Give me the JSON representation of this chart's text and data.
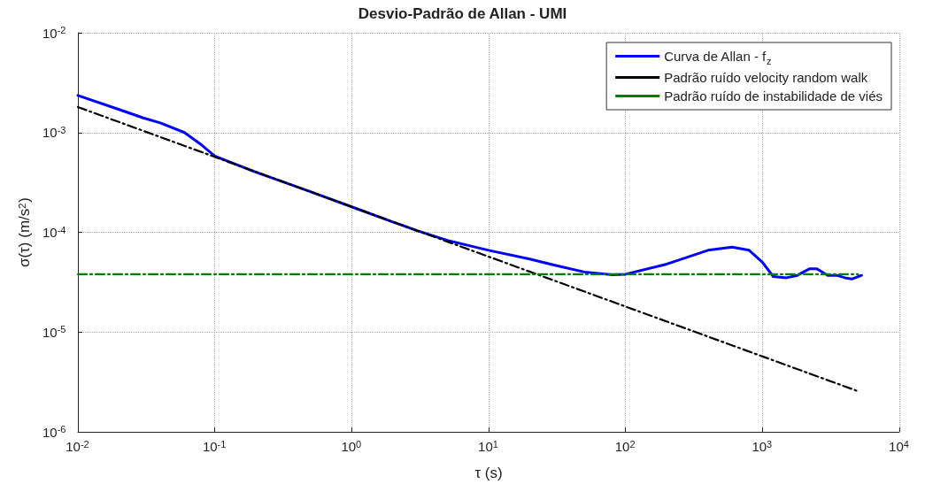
{
  "chart_data": {
    "type": "line",
    "title": "Desvio-Padrão de Allan - UMI",
    "xlabel": "τ (s)",
    "ylabel": "σ(τ) (m/s$^{2}$)",
    "log": "xy",
    "grid": true,
    "legend": "top right",
    "marker": "none",
    "xlim": [
      0.01,
      10000
    ],
    "ylim": [
      1e-06,
      0.01
    ],
    "xticks": [
      {
        "value": 0.01,
        "label": "10$^{-2}$"
      },
      {
        "value": 0.1,
        "label": "10$^{-1}$"
      },
      {
        "value": 1,
        "label": "10$^{0}$"
      },
      {
        "value": 10,
        "label": "10$^{1}$"
      },
      {
        "value": 100,
        "label": "10$^{2}$"
      },
      {
        "value": 1000,
        "label": "10$^{3}$"
      },
      {
        "value": 10000,
        "label": "10$^{4}$"
      }
    ],
    "yticks": [
      {
        "value": 1e-06,
        "label": "10$^{-6}$"
      },
      {
        "value": 1e-05,
        "label": "10$^{-5}$"
      },
      {
        "value": 0.0001,
        "label": "10$^{-4}$"
      },
      {
        "value": 0.001,
        "label": "10$^{-3}$"
      },
      {
        "value": 0.01,
        "label": "10$^{-2}$"
      }
    ],
    "series": [
      {
        "name": "Curva de Allan - f$_{z}$",
        "color": "#0000ff",
        "line_style": "solid",
        "x": [
          0.01,
          0.02,
          0.03,
          0.04,
          0.06,
          0.08,
          0.1,
          0.2,
          0.5,
          1,
          2,
          3,
          5,
          10,
          20,
          30,
          50,
          80,
          100,
          200,
          400,
          600,
          800,
          1000,
          1200,
          1500,
          1800,
          2200,
          2500,
          3000,
          3500,
          4000,
          4500,
          5000,
          5300
        ],
        "values": [
          0.00235,
          0.0017,
          0.0014,
          0.00125,
          0.001,
          0.00075,
          0.00058,
          0.0004,
          0.000255,
          0.00018,
          0.000127,
          0.000104,
          8.3e-05,
          6.6e-05,
          5.4e-05,
          4.7e-05,
          4e-05,
          3.75e-05,
          3.8e-05,
          4.8e-05,
          6.6e-05,
          7.1e-05,
          6.6e-05,
          5e-05,
          3.6e-05,
          3.5e-05,
          3.7e-05,
          4.3e-05,
          4.3e-05,
          3.7e-05,
          3.7e-05,
          3.5e-05,
          3.4e-05,
          3.6e-05,
          3.7e-05
        ]
      },
      {
        "name": "Padrão ruído velocity random walk",
        "color": "#000000",
        "line_style": "dashed",
        "x": [
          0.01,
          5000
        ],
        "values": [
          0.0018,
          2.55e-06
        ]
      },
      {
        "name": "Padrão ruído de instabilidade de viés",
        "color": "#008000",
        "line_style": "dashed",
        "x": [
          0.01,
          5000
        ],
        "values": [
          3.8e-05,
          3.8e-05
        ]
      }
    ]
  }
}
